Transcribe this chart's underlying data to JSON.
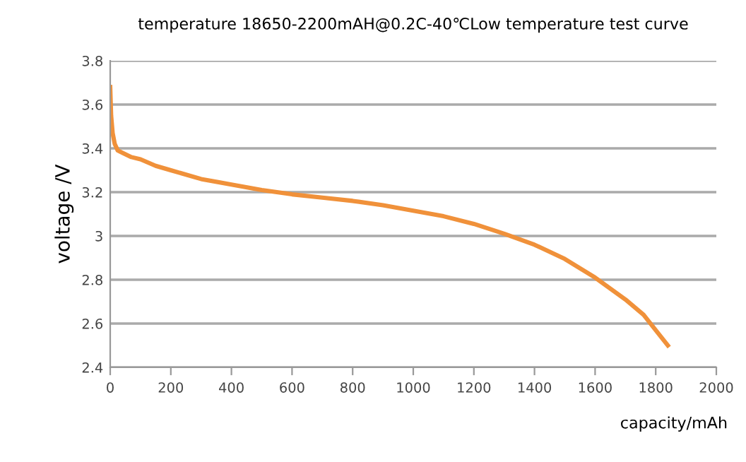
{
  "chart_data": {
    "type": "line",
    "title": "temperature 18650-2200mAH@0.2C-40℃Low temperature test curve",
    "xlabel": "capacity/mAh",
    "ylabel": "voltage /V",
    "series": [
      {
        "color": "#f0913a",
        "x": [
          0,
          3,
          8,
          15,
          25,
          40,
          70,
          100,
          150,
          200,
          300,
          400,
          500,
          600,
          700,
          800,
          900,
          1000,
          1100,
          1200,
          1300,
          1400,
          1500,
          1600,
          1700,
          1760,
          1800,
          1840
        ],
        "values": [
          3.68,
          3.55,
          3.47,
          3.42,
          3.39,
          3.38,
          3.36,
          3.35,
          3.32,
          3.3,
          3.26,
          3.235,
          3.21,
          3.19,
          3.175,
          3.16,
          3.14,
          3.115,
          3.09,
          3.055,
          3.01,
          2.96,
          2.895,
          2.81,
          2.71,
          2.64,
          2.57,
          2.5
        ]
      }
    ],
    "xlim": [
      0,
      2000
    ],
    "xticks": [
      0,
      200,
      400,
      600,
      800,
      1000,
      1200,
      1400,
      1600,
      1800,
      2000
    ],
    "ylim": [
      2.4,
      3.8
    ],
    "yticks": [
      {
        "value": 2.4,
        "label": "2.4"
      },
      {
        "value": 2.6,
        "label": "2.6"
      },
      {
        "value": 2.8,
        "label": "2.8"
      },
      {
        "value": 3.0,
        "label": "3"
      },
      {
        "value": 3.2,
        "label": "3.2"
      },
      {
        "value": 3.4,
        "label": "3.4"
      },
      {
        "value": 3.6,
        "label": "3.6"
      },
      {
        "value": 3.8,
        "label": "3.8"
      }
    ],
    "grid": "y",
    "marker": "none",
    "line_style": "solid"
  }
}
